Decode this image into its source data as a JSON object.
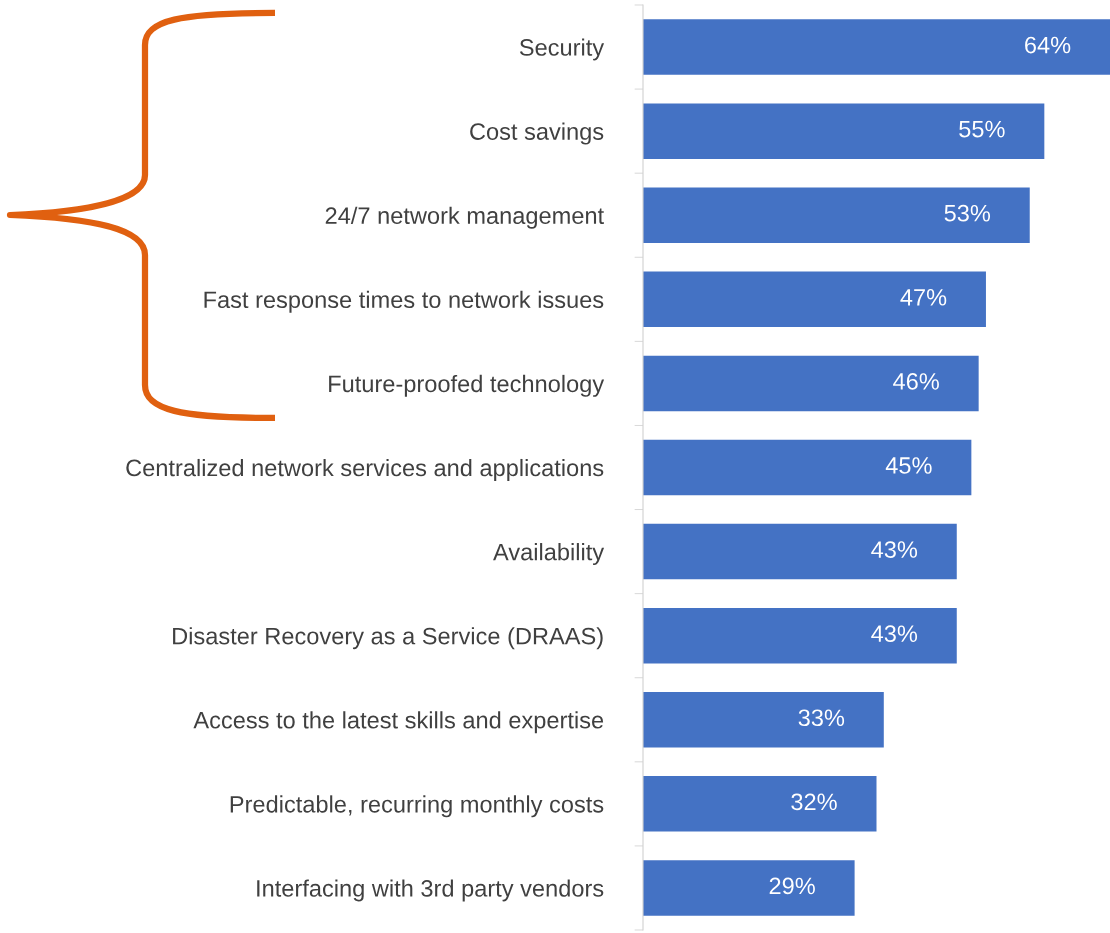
{
  "chart_data": {
    "type": "bar",
    "orientation": "horizontal",
    "categories": [
      "Security",
      "Cost savings",
      "24/7 network management",
      "Fast response times to network issues",
      "Future-proofed technology",
      "Centralized network services and applications",
      "Availability",
      "Disaster Recovery as a Service (DRAAS)",
      "Access to the latest skills and expertise",
      "Predictable, recurring monthly costs",
      "Interfacing with 3rd party vendors"
    ],
    "values": [
      64,
      55,
      53,
      47,
      46,
      45,
      43,
      43,
      33,
      32,
      29
    ],
    "value_labels": [
      "64%",
      "55%",
      "53%",
      "47%",
      "46%",
      "45%",
      "43%",
      "43%",
      "33%",
      "32%",
      "29%"
    ],
    "color": "#4472c4",
    "grid": false,
    "legend": false
  }
}
